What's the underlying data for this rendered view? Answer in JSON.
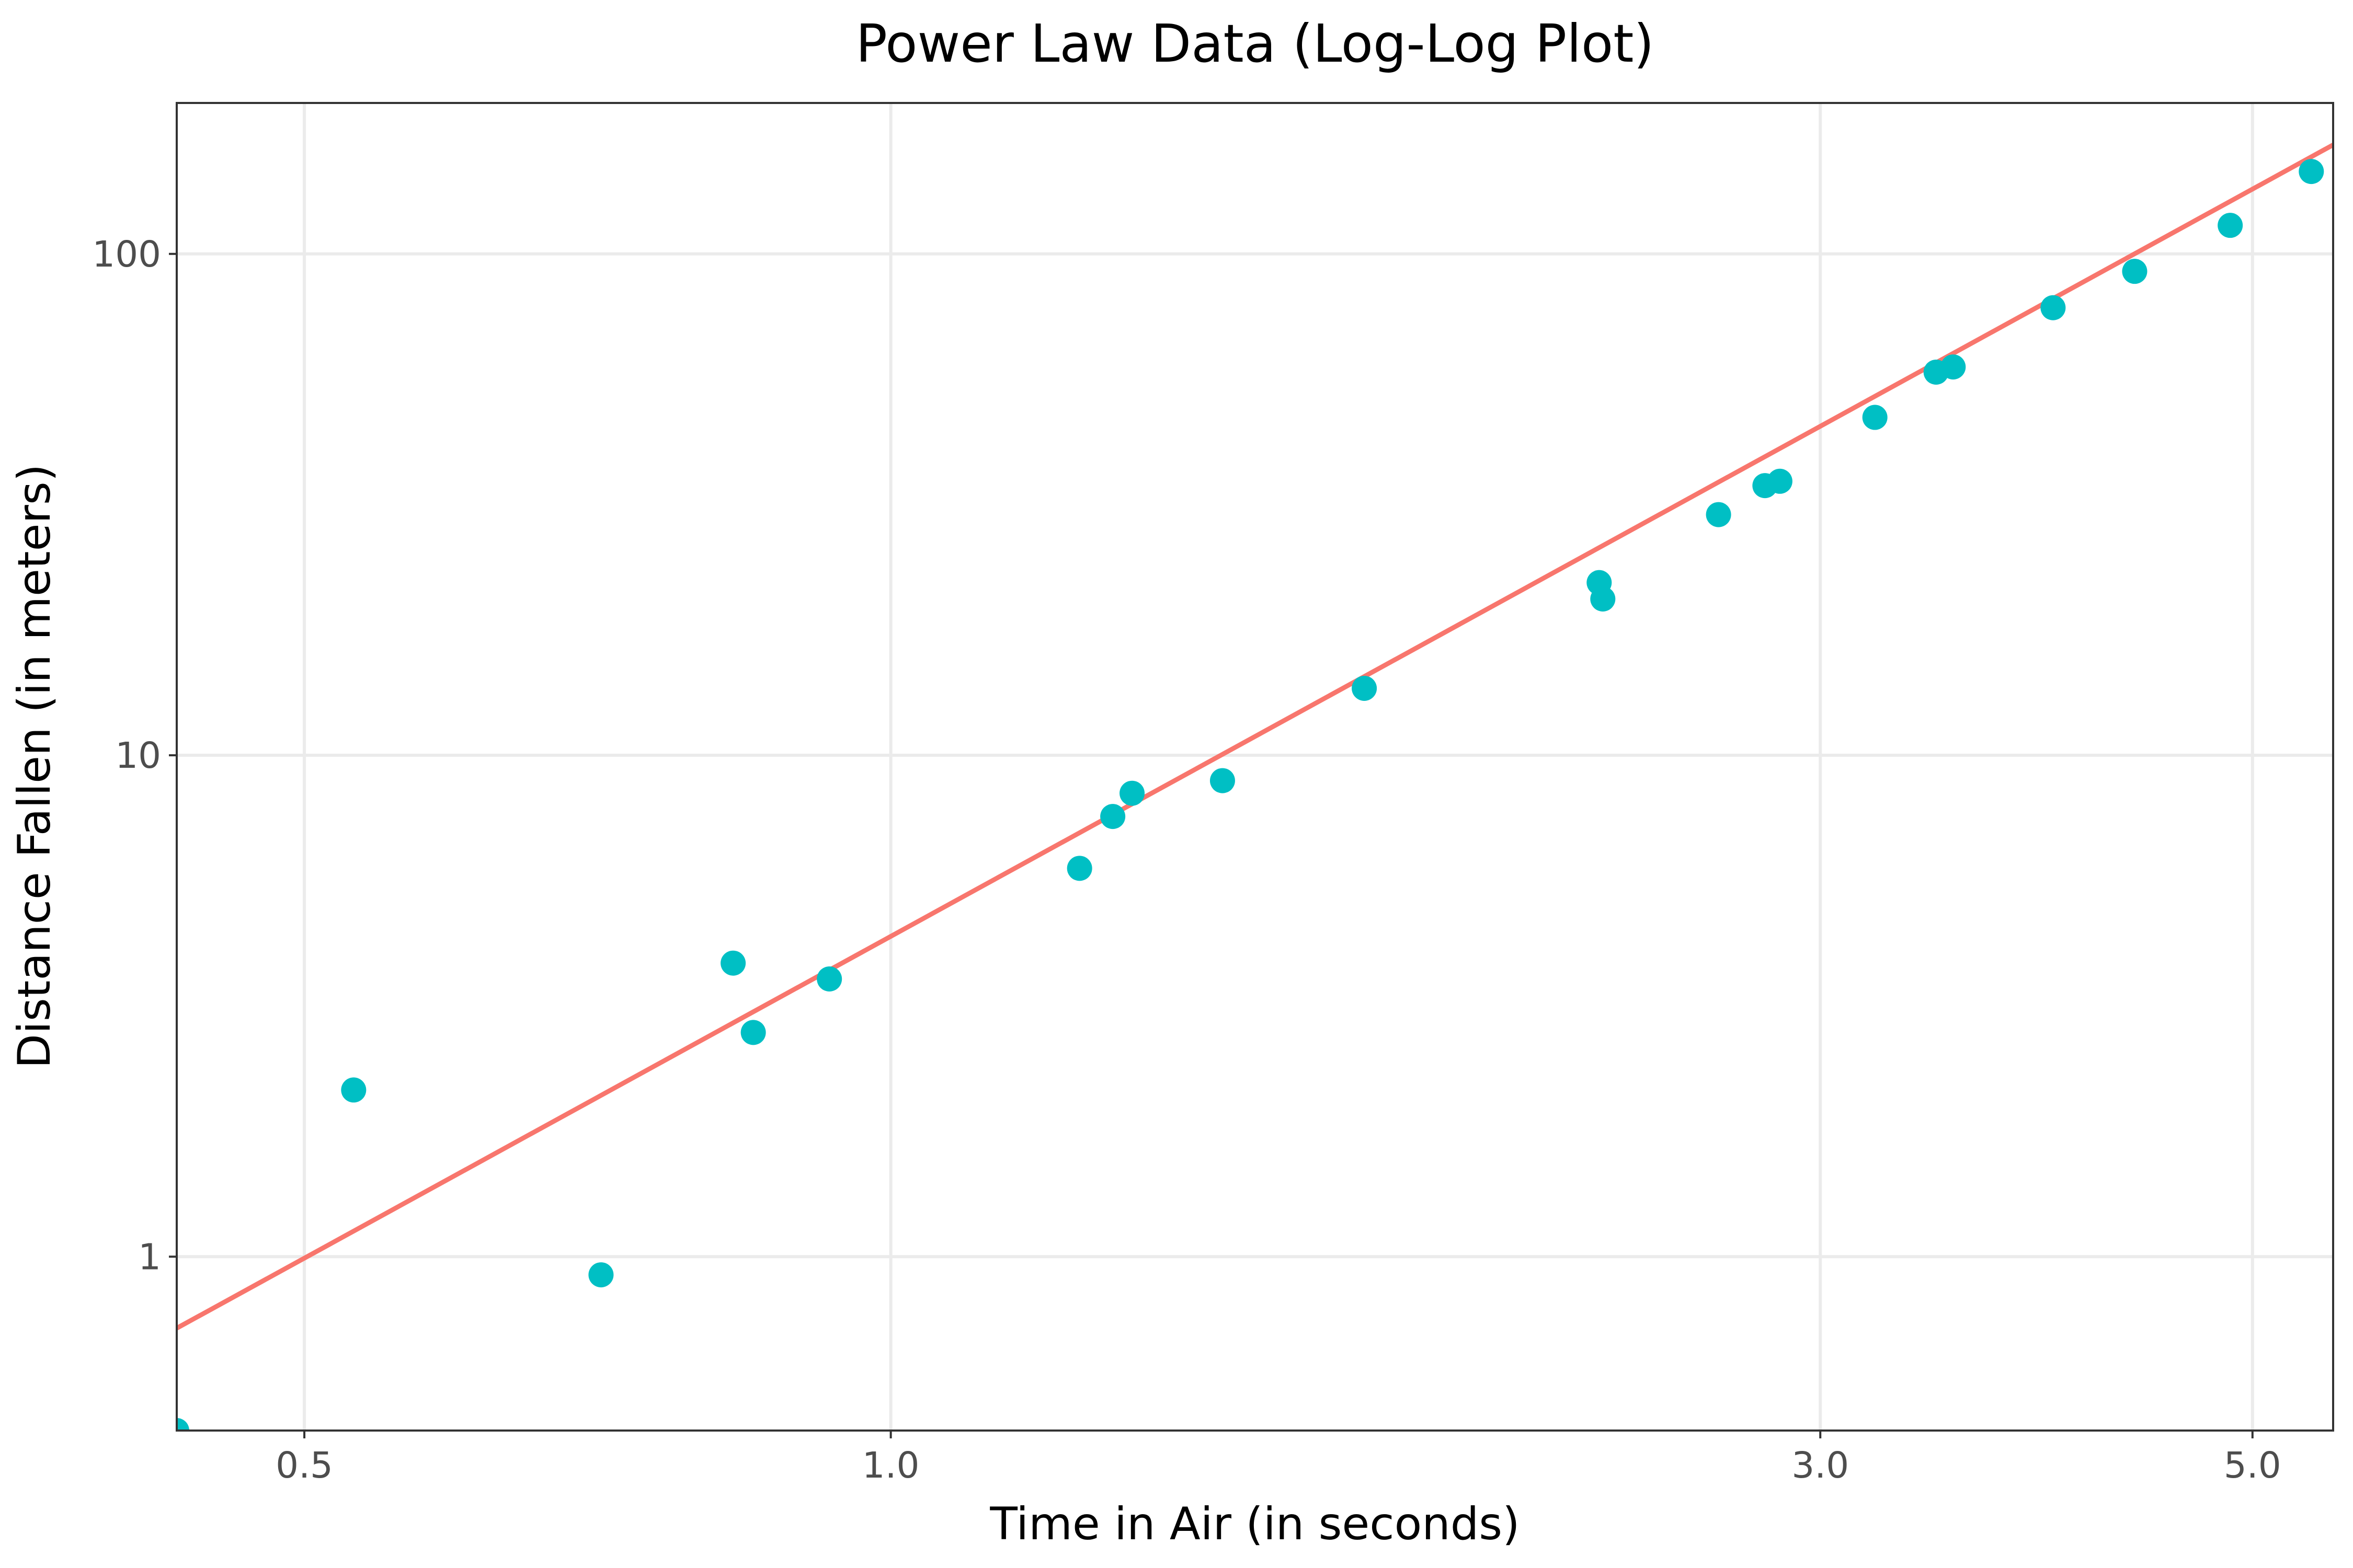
{
  "chart_data": {
    "type": "scatter",
    "title": "Power Law Data (Log-Log Plot)",
    "xlabel": "Time in Air (in seconds)",
    "ylabel": "Distance Fallen (in meters)",
    "xscale": "log10",
    "yscale": "log10",
    "xlim": [
      0.43,
      5.5
    ],
    "ylim": [
      0.45,
      200
    ],
    "x_ticks": [
      0.5,
      1.0,
      3.0,
      5.0
    ],
    "x_tick_labels": [
      "0.5",
      "1.0",
      "3.0",
      "5.0"
    ],
    "y_ticks": [
      1,
      10,
      100
    ],
    "y_tick_labels": [
      "1",
      "10",
      "100"
    ],
    "grid": true,
    "legend": "none",
    "series": [
      {
        "type": "scatter",
        "color": "#00BFC4",
        "x": [
          0.43,
          0.53,
          0.71,
          0.83,
          0.85,
          0.93,
          1.25,
          1.3,
          1.33,
          1.48,
          1.75,
          2.31,
          2.32,
          2.66,
          2.81,
          2.86,
          3.2,
          3.44,
          3.51,
          3.95,
          4.35,
          4.87,
          5.36
        ],
        "y": [
          0.45,
          2.15,
          0.92,
          3.85,
          2.8,
          3.58,
          5.95,
          7.55,
          8.4,
          8.9,
          13.6,
          22.1,
          20.5,
          30.2,
          34.5,
          35.2,
          47.2,
          58.1,
          59.5,
          78.1,
          92.3,
          114,
          146
        ]
      },
      {
        "type": "line",
        "color": "#F8766D",
        "fit": "power-law",
        "x": [
          0.43,
          5.5
        ],
        "y": [
          0.72,
          165
        ]
      }
    ]
  }
}
